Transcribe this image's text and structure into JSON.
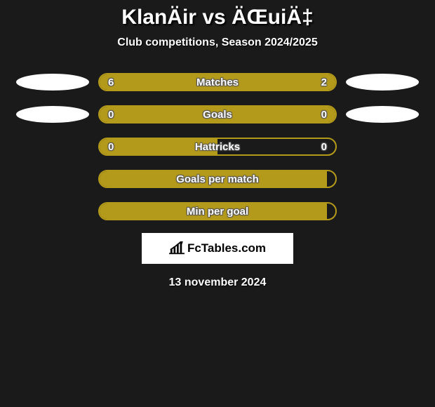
{
  "title": "KlanÄir vs ÄŒuiÄ‡",
  "subtitle": "Club competitions, Season 2024/2025",
  "colors": {
    "left_ellipse": "#ffffff",
    "right_ellipse": "#ffffff",
    "fill": "#b49a1a",
    "empty": "transparent",
    "border": "#b49a1a"
  },
  "stats": [
    {
      "label": "Matches",
      "left_value": "6",
      "right_value": "2",
      "left_pct": 75,
      "right_pct": 25,
      "left_fill": "#b49a1a",
      "right_fill": "#b49a1a",
      "show_ellipses": true
    },
    {
      "label": "Goals",
      "left_value": "0",
      "right_value": "0",
      "left_pct": 50,
      "right_pct": 50,
      "left_fill": "#b49a1a",
      "right_fill": "#b49a1a",
      "show_ellipses": true
    },
    {
      "label": "Hattricks",
      "left_value": "0",
      "right_value": "0",
      "left_pct": 50,
      "right_pct": 50,
      "left_fill": "#b49a1a",
      "right_fill": "transparent",
      "show_ellipses": false
    },
    {
      "label": "Goals per match",
      "left_value": "",
      "right_value": "",
      "left_pct": 100,
      "right_pct": 0,
      "left_fill": "#b49a1a",
      "right_fill": "transparent",
      "show_ellipses": false
    },
    {
      "label": "Min per goal",
      "left_value": "",
      "right_value": "",
      "left_pct": 100,
      "right_pct": 0,
      "left_fill": "#b49a1a",
      "right_fill": "transparent",
      "show_ellipses": false
    }
  ],
  "logo_text": "FcTables.com",
  "date": "13 november 2024"
}
